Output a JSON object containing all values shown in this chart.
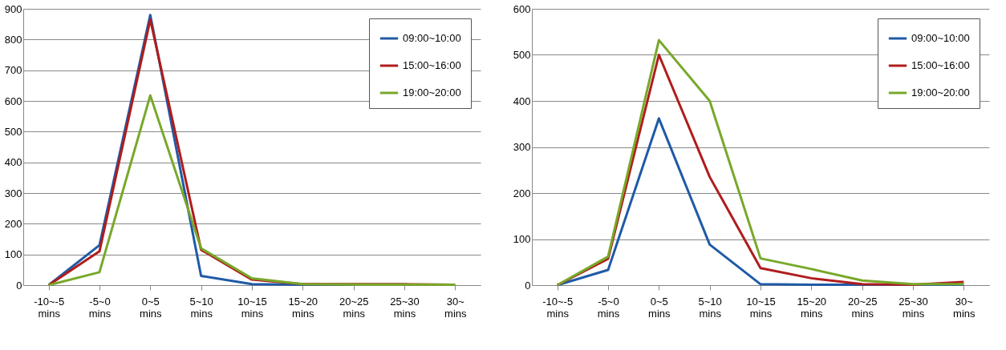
{
  "chart_data": [
    {
      "type": "line",
      "categories": [
        "-10~-5 mins",
        "-5~0 mins",
        "0~5 mins",
        "5~10 mins",
        "10~15 mins",
        "15~20 mins",
        "20~25 mins",
        "25~30 mins",
        "30~ mins"
      ],
      "ylim": [
        0,
        900
      ],
      "yticks": [
        0,
        100,
        200,
        300,
        400,
        500,
        600,
        700,
        800,
        900
      ],
      "grid": "y",
      "legend": "top right",
      "series": [
        {
          "name": "09:00~10:00",
          "color": "#1f5aa6",
          "values": [
            0,
            130,
            880,
            30,
            3,
            1,
            1,
            null,
            null
          ]
        },
        {
          "name": "15:00~16:00",
          "color": "#b01c1c",
          "values": [
            0,
            110,
            865,
            115,
            18,
            3,
            3,
            3,
            1
          ]
        },
        {
          "name": "19:00~20:00",
          "color": "#78a82a",
          "values": [
            0,
            42,
            618,
            120,
            22,
            3,
            2,
            2,
            1
          ]
        }
      ]
    },
    {
      "type": "line",
      "categories": [
        "-10~-5 mins",
        "-5~0 mins",
        "0~5 mins",
        "5~10 mins",
        "10~15 mins",
        "15~20 mins",
        "20~25 mins",
        "25~30 mins",
        "30~ mins"
      ],
      "ylim": [
        0,
        600
      ],
      "yticks": [
        0,
        100,
        200,
        300,
        400,
        500,
        600
      ],
      "grid": "y",
      "legend": "top right",
      "series": [
        {
          "name": "09:00~10:00",
          "color": "#1f5aa6",
          "values": [
            0,
            33,
            362,
            88,
            2,
            1,
            1,
            1,
            1
          ]
        },
        {
          "name": "15:00~16:00",
          "color": "#b01c1c",
          "values": [
            0,
            57,
            500,
            235,
            37,
            15,
            2,
            1,
            7
          ]
        },
        {
          "name": "19:00~20:00",
          "color": "#78a82a",
          "values": [
            0,
            62,
            532,
            400,
            58,
            35,
            10,
            2,
            2
          ]
        }
      ]
    }
  ]
}
